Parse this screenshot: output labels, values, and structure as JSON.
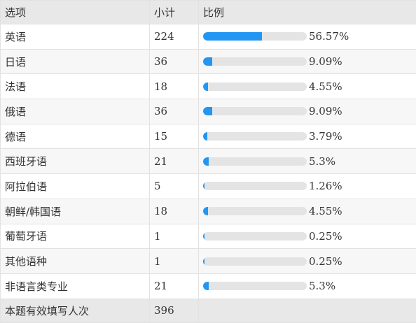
{
  "columns": {
    "option": "选项",
    "count": "小计",
    "ratio": "比例"
  },
  "colors": {
    "bar_fill": "#2196f3",
    "bar_track": "#e4e4e4",
    "header_bg": "#e8e8e8"
  },
  "rows": [
    {
      "option": "英语",
      "count": "224",
      "percent_label": "56.57%",
      "fraction": 0.5657
    },
    {
      "option": "日语",
      "count": "36",
      "percent_label": "9.09%",
      "fraction": 0.0909
    },
    {
      "option": "法语",
      "count": "18",
      "percent_label": "4.55%",
      "fraction": 0.0455
    },
    {
      "option": "俄语",
      "count": "36",
      "percent_label": "9.09%",
      "fraction": 0.0909
    },
    {
      "option": "德语",
      "count": "15",
      "percent_label": "3.79%",
      "fraction": 0.0379
    },
    {
      "option": "西班牙语",
      "count": "21",
      "percent_label": "5.3%",
      "fraction": 0.053
    },
    {
      "option": "阿拉伯语",
      "count": "5",
      "percent_label": "1.26%",
      "fraction": 0.0126
    },
    {
      "option": "朝鲜/韩国语",
      "count": "18",
      "percent_label": "4.55%",
      "fraction": 0.0455
    },
    {
      "option": "葡萄牙语",
      "count": "1",
      "percent_label": "0.25%",
      "fraction": 0.0025
    },
    {
      "option": "其他语种",
      "count": "1",
      "percent_label": "0.25%",
      "fraction": 0.0025
    },
    {
      "option": "非语言类专业",
      "count": "21",
      "percent_label": "5.3%",
      "fraction": 0.053
    }
  ],
  "footer": {
    "label": "本题有效填写人次",
    "count": "396"
  }
}
